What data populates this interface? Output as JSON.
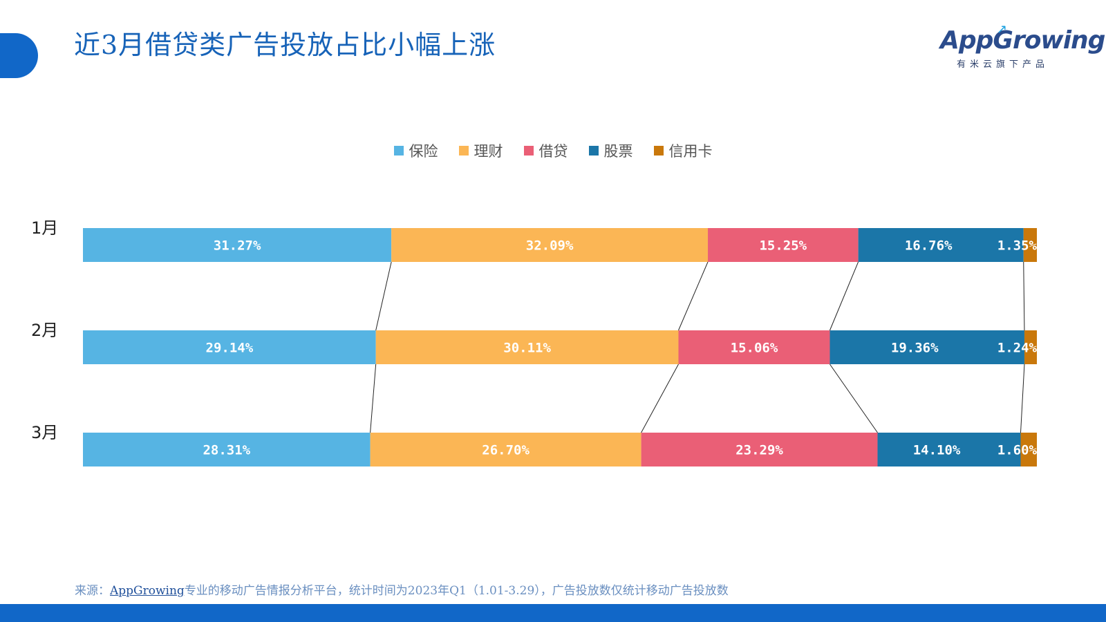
{
  "page": {
    "title": "近3月借贷类广告投放占比小幅上涨",
    "logo_text": "AppGrowing",
    "logo_sub": "有米云旗下产品",
    "source_prefix": "来源：",
    "source_link": "AppGrowing",
    "source_rest": "专业的移动广告情报分析平台，统计时间为2023年Q1（1.01-3.29），广告投放数仅统计移动广告投放数"
  },
  "colors": {
    "accent": "#1167c8",
    "title": "#1763b8"
  },
  "chart_data": {
    "type": "bar",
    "orientation": "horizontal",
    "stacked": "percent",
    "title": "",
    "xlabel": "",
    "ylabel": "",
    "categories": [
      "1月",
      "2月",
      "3月"
    ],
    "series": [
      {
        "name": "保险",
        "color": "#56b4e3",
        "values": [
          31.27,
          29.14,
          28.31
        ],
        "labels": [
          "31.27%",
          "29.14%",
          "28.31%"
        ]
      },
      {
        "name": "理财",
        "color": "#fbb655",
        "values": [
          32.09,
          30.11,
          26.7
        ],
        "labels": [
          "32.09%",
          "30.11%",
          "26.70%"
        ]
      },
      {
        "name": "借贷",
        "color": "#ea5f76",
        "values": [
          15.25,
          15.06,
          23.29
        ],
        "labels": [
          "15.25%",
          "15.06%",
          "23.29%"
        ]
      },
      {
        "name": "股票",
        "color": "#1b76a8",
        "values": [
          16.76,
          19.36,
          14.1
        ],
        "labels": [
          "16.76%",
          "19.36%",
          "14.10%"
        ]
      },
      {
        "name": "信用卡",
        "color": "#c9780b",
        "values": [
          1.35,
          1.24,
          1.6
        ],
        "labels": [
          "1.35%",
          "1.24%",
          "1.60%"
        ]
      }
    ],
    "legend_position": "top-center",
    "series_lines": true,
    "grid": false
  }
}
